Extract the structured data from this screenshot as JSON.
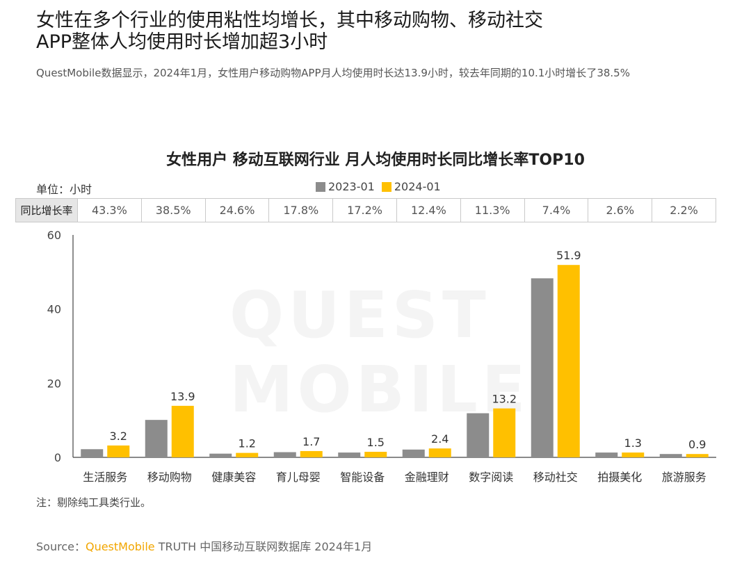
{
  "header": {
    "title_line1": "女性在多个行业的使用粘性均增长，其中移动购物、移动社交",
    "title_line2": "APP整体人均使用时长增加超3小时",
    "subtitle": "QuestMobile数据显示，2024年1月，女性用户移动购物APP月人均使用时长达13.9小时，较去年同期的10.1小时增长了38.5%"
  },
  "watermark": "QUEST MOBILE",
  "growth_label": "同比增长率",
  "growth_rates": [
    "43.3%",
    "38.5%",
    "24.6%",
    "17.8%",
    "17.2%",
    "12.4%",
    "11.3%",
    "7.4%",
    "2.6%",
    "2.2%"
  ],
  "note": "注：剔除纯工具类行业。",
  "source": {
    "prefix": "Source：",
    "brand": "QuestMobile",
    "rest": " TRUTH 中国移动互联网数据库 2024年1月"
  },
  "chart_data": {
    "type": "bar",
    "title": "女性用户 移动互联网行业 月人均使用时长同比增长率TOP10",
    "unit_label": "单位：小时",
    "categories": [
      "生活服务",
      "移动购物",
      "健康美容",
      "育儿母婴",
      "智能设备",
      "金融理财",
      "数字阅读",
      "移动社交",
      "拍摄美化",
      "旅游服务"
    ],
    "series": [
      {
        "name": "2023-01",
        "color": "#8c8c8c",
        "values": [
          2.2,
          10.1,
          1.0,
          1.4,
          1.3,
          2.1,
          11.9,
          48.3,
          1.3,
          0.9
        ]
      },
      {
        "name": "2024-01",
        "color": "#ffc000",
        "values": [
          3.2,
          13.9,
          1.2,
          1.7,
          1.5,
          2.4,
          13.2,
          51.9,
          1.3,
          0.9
        ]
      }
    ],
    "data_labels": [
      "3.2",
      "13.9",
      "1.2",
      "1.7",
      "1.5",
      "2.4",
      "13.2",
      "51.9",
      "1.3",
      "0.9"
    ],
    "yticks": [
      0,
      20,
      40,
      60
    ],
    "ylim": [
      0,
      60
    ],
    "legend_position": "top-center",
    "grid": false
  }
}
